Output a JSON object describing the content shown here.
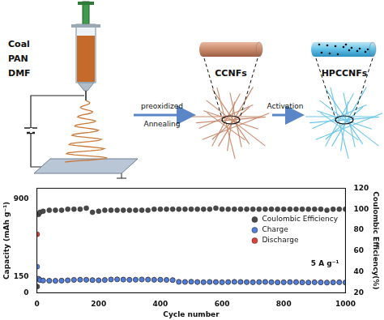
{
  "diagram": {
    "syringe_labels": [
      "Coal",
      "PAN",
      "DMF"
    ],
    "step1": [
      "preoxidized",
      "Annealing"
    ],
    "product1": "CCNFs",
    "step2": "Activation",
    "product2": "HPCCNFs"
  },
  "chart_data": {
    "type": "scatter",
    "marker": "circle",
    "grid": false,
    "legend": "right",
    "x_label": "Cycle number",
    "y_label": "Capacity (mAh g⁻¹)",
    "y2_label": "Coulombic Efficiency(%)",
    "annotation": "5 A g⁻¹",
    "xlim": [
      0,
      1000
    ],
    "xticks": [
      0,
      200,
      400,
      600,
      800,
      1000
    ],
    "ylim": [
      0,
      1000
    ],
    "yticks": [
      0,
      150,
      900
    ],
    "y2lim": [
      20,
      120
    ],
    "y2ticks": [
      20,
      40,
      60,
      80,
      100,
      120
    ],
    "x": [
      1,
      5,
      10,
      20,
      40,
      60,
      80,
      100,
      120,
      140,
      160,
      180,
      200,
      220,
      240,
      260,
      280,
      300,
      320,
      340,
      360,
      380,
      400,
      420,
      440,
      460,
      480,
      500,
      520,
      540,
      560,
      580,
      600,
      620,
      640,
      660,
      680,
      700,
      720,
      740,
      760,
      780,
      800,
      820,
      840,
      860,
      880,
      900,
      920,
      940,
      960,
      980,
      1000
    ],
    "series": [
      {
        "name": "Coulombic Efficiency",
        "color": "#4a4a4a",
        "axis": "y2",
        "values": [
          26,
          95,
          97,
          98,
          99,
          99,
          99,
          100,
          100,
          100,
          101,
          97,
          98,
          99,
          99,
          99,
          99,
          99,
          99,
          99,
          99,
          100,
          100,
          100,
          100,
          100,
          100,
          100,
          100,
          100,
          100,
          101,
          100,
          100,
          100,
          100,
          100,
          100,
          100,
          100,
          100,
          100,
          100,
          100,
          100,
          100,
          100,
          100,
          100,
          99,
          100,
          100,
          100
        ]
      },
      {
        "name": "Charge",
        "color": "#4f7fd9",
        "values": [
          250,
          133,
          121,
          117,
          115,
          114,
          116,
          119,
          123,
          125,
          124,
          121,
          119,
          122,
          127,
          128,
          126,
          124,
          125,
          127,
          126,
          124,
          125,
          123,
          121,
          104,
          103,
          105,
          102,
          101,
          103,
          102,
          100,
          102,
          104,
          103,
          101,
          100,
          102,
          103,
          101,
          99,
          100,
          102,
          101,
          99,
          98,
          100,
          99,
          97,
          99,
          100,
          98
        ]
      },
      {
        "name": "Discharge",
        "color": "#e0403c",
        "values": [
          560,
          135,
          122,
          118,
          116,
          115,
          117,
          120,
          124,
          126,
          125,
          122,
          120,
          123,
          128,
          129,
          127,
          125,
          126,
          128,
          127,
          125,
          126,
          124,
          122,
          105,
          104,
          106,
          103,
          102,
          104,
          103,
          101,
          103,
          105,
          104,
          102,
          101,
          103,
          104,
          102,
          100,
          101,
          103,
          102,
          100,
          99,
          101,
          100,
          98,
          100,
          101,
          99
        ]
      }
    ]
  }
}
